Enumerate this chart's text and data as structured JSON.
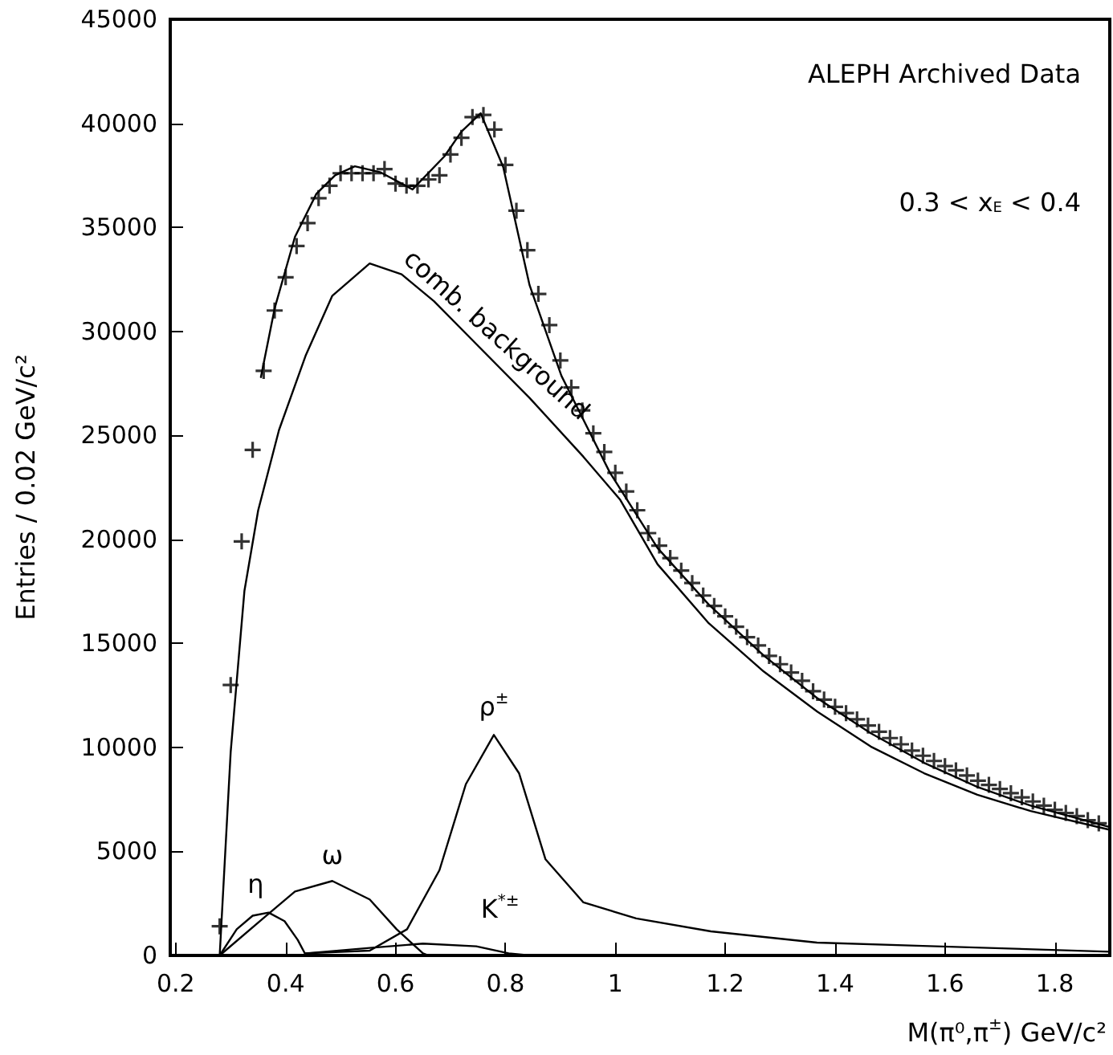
{
  "chart_data": {
    "type": "line",
    "xlabel": "M(π⁰,π$^{±}$) GeV/c²",
    "ylabel": "Entries / 0.02 GeV/c²",
    "annotations": [
      "ALEPH Archived Data",
      "0.3 < x$_{E}$ < 0.4"
    ],
    "xlim": [
      0.19,
      1.9
    ],
    "xticks": [
      0.2,
      0.4,
      0.6,
      0.8,
      1,
      1.2,
      1.4,
      1.6,
      1.8
    ],
    "ylim": [
      0,
      45000
    ],
    "yticks": [
      0,
      5000,
      10000,
      15000,
      20000,
      25000,
      30000,
      35000,
      40000,
      45000
    ],
    "grid": false,
    "series": [
      {
        "type": "scatter",
        "marker": "cross",
        "color": "#000000",
        "x": [
          0.28,
          0.3,
          0.32,
          0.34,
          0.36,
          0.38,
          0.4,
          0.42,
          0.44,
          0.46,
          0.48,
          0.5,
          0.52,
          0.54,
          0.56,
          0.58,
          0.6,
          0.62,
          0.64,
          0.66,
          0.68,
          0.7,
          0.72,
          0.74,
          0.76,
          0.78,
          0.8,
          0.82,
          0.84,
          0.86,
          0.88,
          0.9,
          0.92,
          0.94,
          0.96,
          0.98,
          1.0,
          1.02,
          1.04,
          1.06,
          1.08,
          1.1,
          1.12,
          1.14,
          1.16,
          1.18,
          1.2,
          1.22,
          1.24,
          1.26,
          1.28,
          1.3,
          1.32,
          1.34,
          1.36,
          1.38,
          1.4,
          1.42,
          1.44,
          1.46,
          1.48,
          1.5,
          1.52,
          1.54,
          1.56,
          1.58,
          1.6,
          1.62,
          1.64,
          1.66,
          1.68,
          1.7,
          1.72,
          1.74,
          1.76,
          1.78,
          1.8,
          1.82,
          1.84,
          1.86,
          1.88
        ],
        "values": [
          1400,
          13000,
          19900,
          24300,
          28100,
          31000,
          32600,
          34100,
          35200,
          36400,
          37000,
          37600,
          37600,
          37600,
          37600,
          37800,
          37100,
          37000,
          37000,
          37300,
          37500,
          38500,
          39300,
          40300,
          40400,
          39700,
          38000,
          35800,
          33900,
          31800,
          30300,
          28600,
          27300,
          26200,
          25100,
          24200,
          23200,
          22300,
          21400,
          20300,
          19700,
          19100,
          18500,
          17900,
          17300,
          16800,
          16300,
          15800,
          15300,
          14900,
          14400,
          14000,
          13600,
          13200,
          12700,
          12300,
          11950,
          11650,
          11350,
          11050,
          10750,
          10450,
          10150,
          9850,
          9600,
          9350,
          9100,
          8900,
          8650,
          8400,
          8200,
          8000,
          7800,
          7600,
          7400,
          7200,
          7000,
          6850,
          6700,
          6500,
          6350
        ]
      },
      {
        "marker": "none",
        "line_style": "solid",
        "color": "#000000",
        "x": [
          0.355,
          0.38,
          0.417,
          0.456,
          0.49,
          0.526,
          0.573,
          0.631,
          0.689,
          0.72,
          0.755,
          0.796,
          0.844,
          0.902,
          0.99,
          1.077,
          1.17,
          1.27,
          1.368,
          1.465,
          1.562,
          1.659,
          1.756,
          1.9
        ],
        "values": [
          27800,
          31100,
          34540,
          36610,
          37500,
          37930,
          37640,
          36820,
          38410,
          39600,
          40480,
          37900,
          32220,
          27860,
          23220,
          19580,
          16870,
          14420,
          12360,
          10680,
          9260,
          8100,
          7200,
          6170
        ]
      },
      {
        "name": "comb. background",
        "marker": "none",
        "line_style": "solid",
        "color": "#000000",
        "x": [
          0.28,
          0.3,
          0.325,
          0.35,
          0.388,
          0.437,
          0.485,
          0.553,
          0.611,
          0.67,
          0.747,
          0.844,
          0.942,
          1.009,
          1.077,
          1.17,
          1.27,
          1.368,
          1.465,
          1.562,
          1.659,
          1.756,
          1.9
        ],
        "values": [
          0,
          9780,
          17520,
          21390,
          25260,
          28870,
          31710,
          33260,
          32740,
          31450,
          29390,
          26800,
          23970,
          21900,
          18800,
          15970,
          13650,
          11710,
          10040,
          8760,
          7720,
          6940,
          6040
        ]
      },
      {
        "name": "η",
        "marker": "none",
        "line_style": "solid",
        "color": "#000000",
        "x": [
          0.28,
          0.311,
          0.34,
          0.369,
          0.398,
          0.422,
          0.437
        ],
        "values": [
          0,
          1260,
          1910,
          2060,
          1650,
          750,
          0
        ]
      },
      {
        "name": "ω",
        "marker": "none",
        "line_style": "solid",
        "color": "#000000",
        "x": [
          0.28,
          0.359,
          0.417,
          0.485,
          0.553,
          0.602,
          0.65,
          0.66
        ],
        "values": [
          0,
          1780,
          3070,
          3580,
          2690,
          1260,
          100,
          0
        ]
      },
      {
        "name": "ρ$^{±}$",
        "marker": "none",
        "line_style": "solid",
        "color": "#000000",
        "x": [
          0.437,
          0.553,
          0.621,
          0.68,
          0.728,
          0.779,
          0.825,
          0.873,
          0.942,
          1.038,
          1.174,
          1.367,
          1.56,
          1.9
        ],
        "values": [
          100,
          230,
          1260,
          4100,
          8230,
          10600,
          8750,
          4620,
          2550,
          1780,
          1160,
          620,
          460,
          180
        ]
      },
      {
        "name": "K$^{*±}$",
        "marker": "none",
        "line_style": "solid",
        "color": "#000000",
        "x": [
          0.437,
          0.553,
          0.65,
          0.747,
          0.806,
          0.845
        ],
        "values": [
          100,
          360,
          570,
          440,
          100,
          0
        ]
      }
    ]
  }
}
